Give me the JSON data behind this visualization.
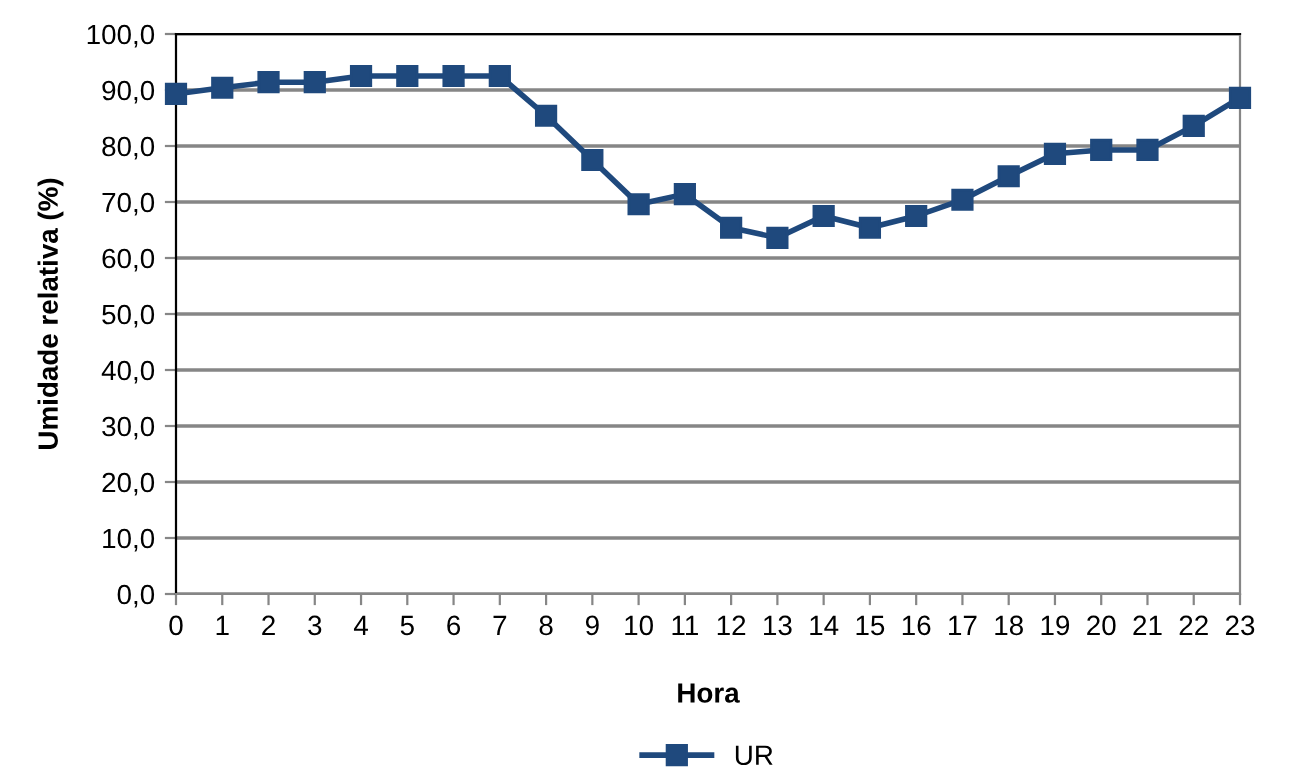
{
  "chart_data": {
    "type": "line",
    "xlabel": "Hora",
    "ylabel": "Umidade relativa (%)",
    "x": [
      0,
      1,
      2,
      3,
      4,
      5,
      6,
      7,
      8,
      9,
      10,
      11,
      12,
      13,
      14,
      15,
      16,
      17,
      18,
      19,
      20,
      21,
      22,
      23
    ],
    "series": [
      {
        "name": "UR",
        "color": "#1f497d",
        "values": [
          89.3,
          90.4,
          91.4,
          91.4,
          92.5,
          92.5,
          92.5,
          92.5,
          85.4,
          77.5,
          69.6,
          71.4,
          65.4,
          63.6,
          67.5,
          65.4,
          67.5,
          70.4,
          74.6,
          78.6,
          79.3,
          79.3,
          83.6,
          88.6
        ]
      }
    ],
    "xlim": [
      0,
      23
    ],
    "xticks": [
      0,
      1,
      2,
      3,
      4,
      5,
      6,
      7,
      8,
      9,
      10,
      11,
      12,
      13,
      14,
      15,
      16,
      17,
      18,
      19,
      20,
      21,
      22,
      23
    ],
    "ylim": [
      0,
      100
    ],
    "yticks": [
      {
        "value": 0,
        "label": "0,0"
      },
      {
        "value": 10,
        "label": "10,0"
      },
      {
        "value": 20,
        "label": "20,0"
      },
      {
        "value": 30,
        "label": "30,0"
      },
      {
        "value": 40,
        "label": "40,0"
      },
      {
        "value": 50,
        "label": "50,0"
      },
      {
        "value": 60,
        "label": "60,0"
      },
      {
        "value": 70,
        "label": "70,0"
      },
      {
        "value": 80,
        "label": "80,0"
      },
      {
        "value": 90,
        "label": "90,0"
      },
      {
        "value": 100,
        "label": "100,0"
      }
    ],
    "grid": "y",
    "legend": "bottom",
    "marker": "square",
    "line_style": "solid"
  }
}
